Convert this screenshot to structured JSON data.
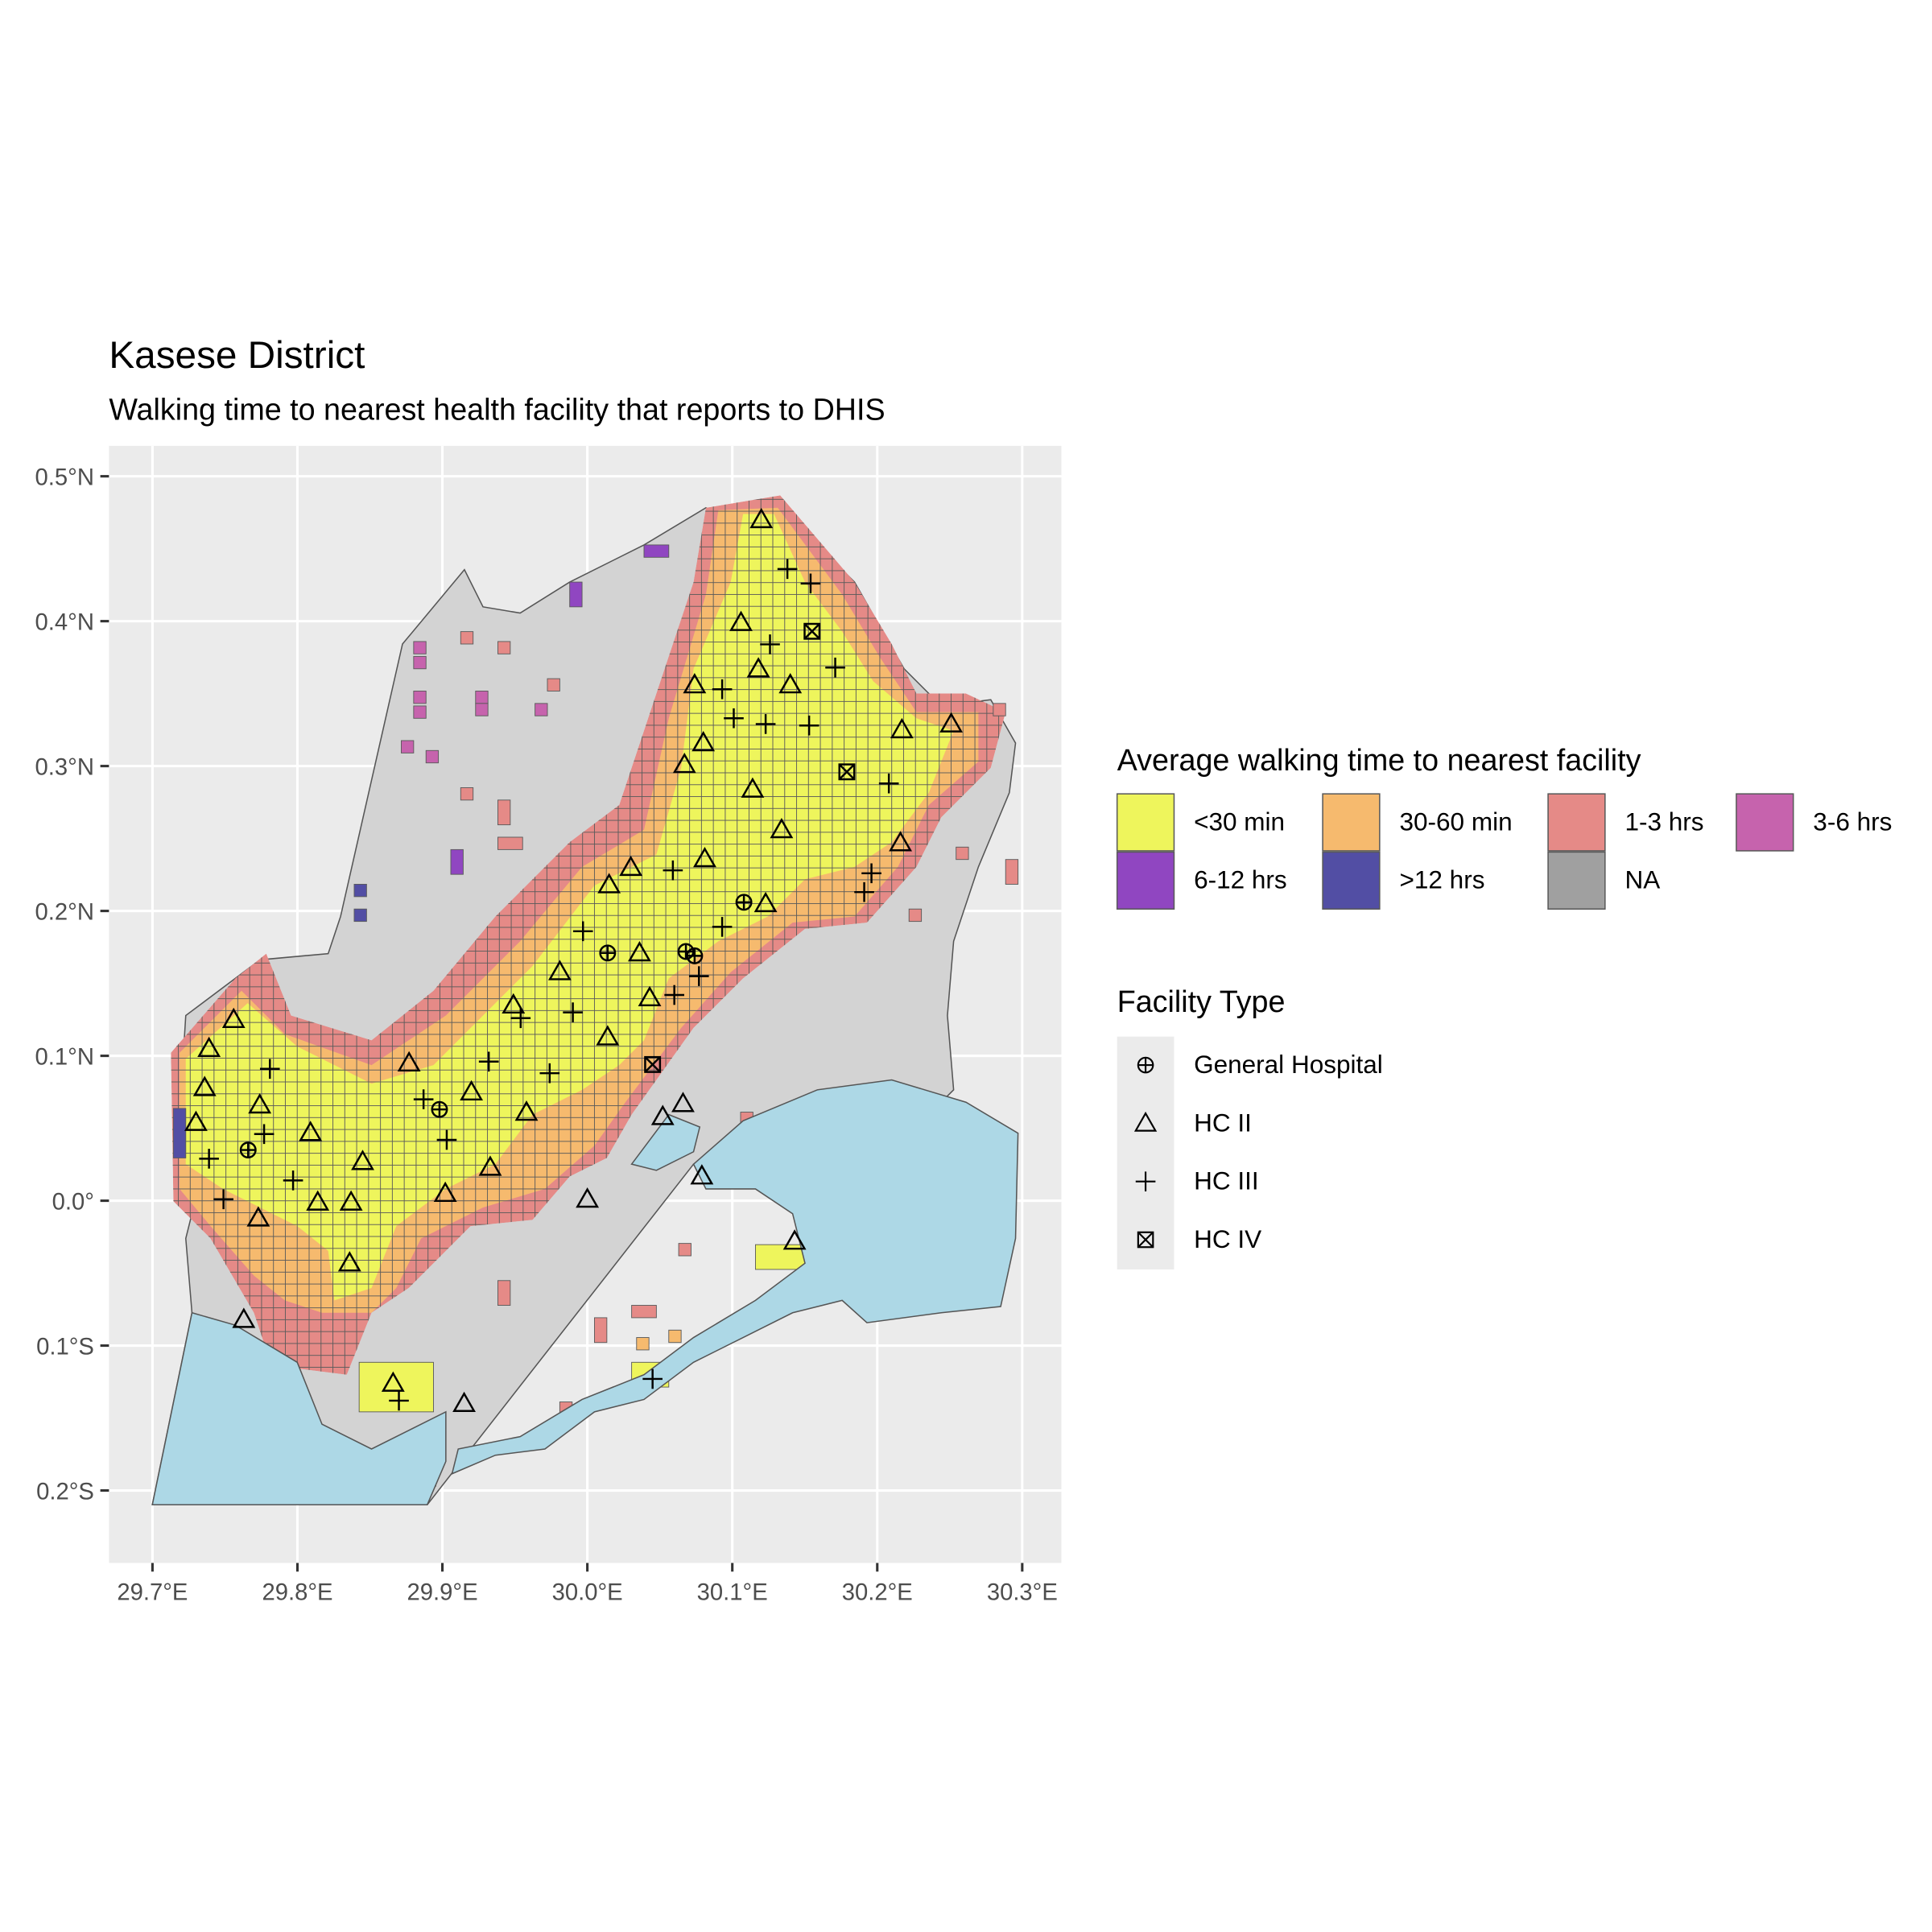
{
  "title": "Kasese District",
  "subtitle": "Walking time to nearest health facility that reports to DHIS",
  "xlim": [
    29.67,
    30.327
  ],
  "ylim": [
    -0.25,
    0.521
  ],
  "xticks": [
    {
      "value": 29.7,
      "label": "29.7°E"
    },
    {
      "value": 29.8,
      "label": "29.8°E"
    },
    {
      "value": 29.9,
      "label": "29.9°E"
    },
    {
      "value": 30.0,
      "label": "30.0°E"
    },
    {
      "value": 30.1,
      "label": "30.1°E"
    },
    {
      "value": 30.2,
      "label": "30.2°E"
    },
    {
      "value": 30.3,
      "label": "30.3°E"
    }
  ],
  "yticks": [
    {
      "value": -0.2,
      "label": "0.2°S"
    },
    {
      "value": -0.1,
      "label": "0.1°S"
    },
    {
      "value": 0,
      "label": "0.0°"
    },
    {
      "value": 0.1,
      "label": "0.1°N"
    },
    {
      "value": 0.2,
      "label": "0.2°N"
    },
    {
      "value": 0.3,
      "label": "0.3°N"
    },
    {
      "value": 0.4,
      "label": "0.4°N"
    },
    {
      "value": 0.5,
      "label": "0.5°N"
    }
  ],
  "fill_legend": {
    "title": "Average walking time to nearest facility",
    "items": [
      {
        "label": "<30 min",
        "color": "#eef55c"
      },
      {
        "label": "30-60 min",
        "color": "#f6ba6e"
      },
      {
        "label": "1-3 hrs",
        "color": "#e58a87"
      },
      {
        "label": "3-6 hrs",
        "color": "#c663ad"
      },
      {
        "label": "6-12 hrs",
        "color": "#9046c1"
      },
      {
        "label": ">12 hrs",
        "color": "#524ea4"
      },
      {
        "label": "NA",
        "color": "#a0a0a0"
      }
    ]
  },
  "facility_legend": {
    "title": "Facility Type",
    "items": [
      {
        "label": "General Hospital",
        "symbol": "circle-plus",
        "points": [
          [
            30.014,
            0.171
          ],
          [
            30.068,
            0.172
          ],
          [
            30.074,
            0.169
          ],
          [
            29.898,
            0.063
          ],
          [
            29.766,
            0.035
          ],
          [
            30.108,
            0.206
          ]
        ]
      },
      {
        "label": "HC II",
        "symbol": "triangle",
        "points": [
          [
            30.12,
            0.47
          ],
          [
            30.106,
            0.399
          ],
          [
            30.118,
            0.367
          ],
          [
            30.14,
            0.356
          ],
          [
            30.074,
            0.356
          ],
          [
            30.217,
            0.325
          ],
          [
            30.251,
            0.329
          ],
          [
            30.08,
            0.316
          ],
          [
            30.067,
            0.301
          ],
          [
            30.114,
            0.284
          ],
          [
            30.134,
            0.256
          ],
          [
            30.216,
            0.247
          ],
          [
            30.081,
            0.236
          ],
          [
            30.03,
            0.23
          ],
          [
            30.015,
            0.218
          ],
          [
            30.123,
            0.205
          ],
          [
            30.036,
            0.171
          ],
          [
            29.981,
            0.158
          ],
          [
            30.043,
            0.14
          ],
          [
            29.949,
            0.135
          ],
          [
            30.014,
            0.113
          ],
          [
            29.877,
            0.095
          ],
          [
            29.92,
            0.075
          ],
          [
            29.958,
            0.061
          ],
          [
            30.052,
            0.058
          ],
          [
            30.066,
            0.067
          ],
          [
            30.079,
            0.017
          ],
          [
            30.0,
            0.001
          ],
          [
            29.933,
            0.023
          ],
          [
            29.902,
            0.005
          ],
          [
            29.845,
            0.027
          ],
          [
            29.809,
            0.047
          ],
          [
            29.814,
            -0.001
          ],
          [
            29.837,
            -0.001
          ],
          [
            29.836,
            -0.043
          ],
          [
            29.773,
            -0.012
          ],
          [
            29.73,
            0.054
          ],
          [
            29.739,
            0.105
          ],
          [
            29.756,
            0.125
          ],
          [
            29.763,
            -0.082
          ],
          [
            29.866,
            -0.126
          ],
          [
            29.915,
            -0.14
          ],
          [
            30.143,
            -0.028
          ],
          [
            29.774,
            0.066
          ],
          [
            29.736,
            0.078
          ]
        ]
      },
      {
        "label": "HC III",
        "symbol": "plus",
        "points": [
          [
            30.138,
            0.436
          ],
          [
            30.154,
            0.426
          ],
          [
            30.126,
            0.384
          ],
          [
            30.171,
            0.368
          ],
          [
            30.093,
            0.353
          ],
          [
            30.101,
            0.333
          ],
          [
            30.123,
            0.329
          ],
          [
            30.153,
            0.328
          ],
          [
            30.208,
            0.288
          ],
          [
            30.196,
            0.226
          ],
          [
            30.191,
            0.213
          ],
          [
            30.059,
            0.228
          ],
          [
            29.997,
            0.186
          ],
          [
            30.06,
            0.142
          ],
          [
            30.077,
            0.155
          ],
          [
            30.093,
            0.189
          ],
          [
            29.99,
            0.13
          ],
          [
            29.974,
            0.088
          ],
          [
            29.932,
            0.096
          ],
          [
            29.903,
            0.042
          ],
          [
            29.887,
            0.07
          ],
          [
            29.781,
            0.091
          ],
          [
            29.777,
            0.046
          ],
          [
            29.797,
            0.014
          ],
          [
            29.749,
            0.001
          ],
          [
            29.739,
            0.029
          ],
          [
            29.87,
            -0.138
          ],
          [
            30.045,
            -0.123
          ],
          [
            29.954,
            0.126
          ]
        ]
      },
      {
        "label": "HC IV",
        "symbol": "square-x",
        "points": [
          [
            30.155,
            0.393
          ],
          [
            30.179,
            0.296
          ],
          [
            30.045,
            0.094
          ]
        ]
      }
    ]
  }
}
